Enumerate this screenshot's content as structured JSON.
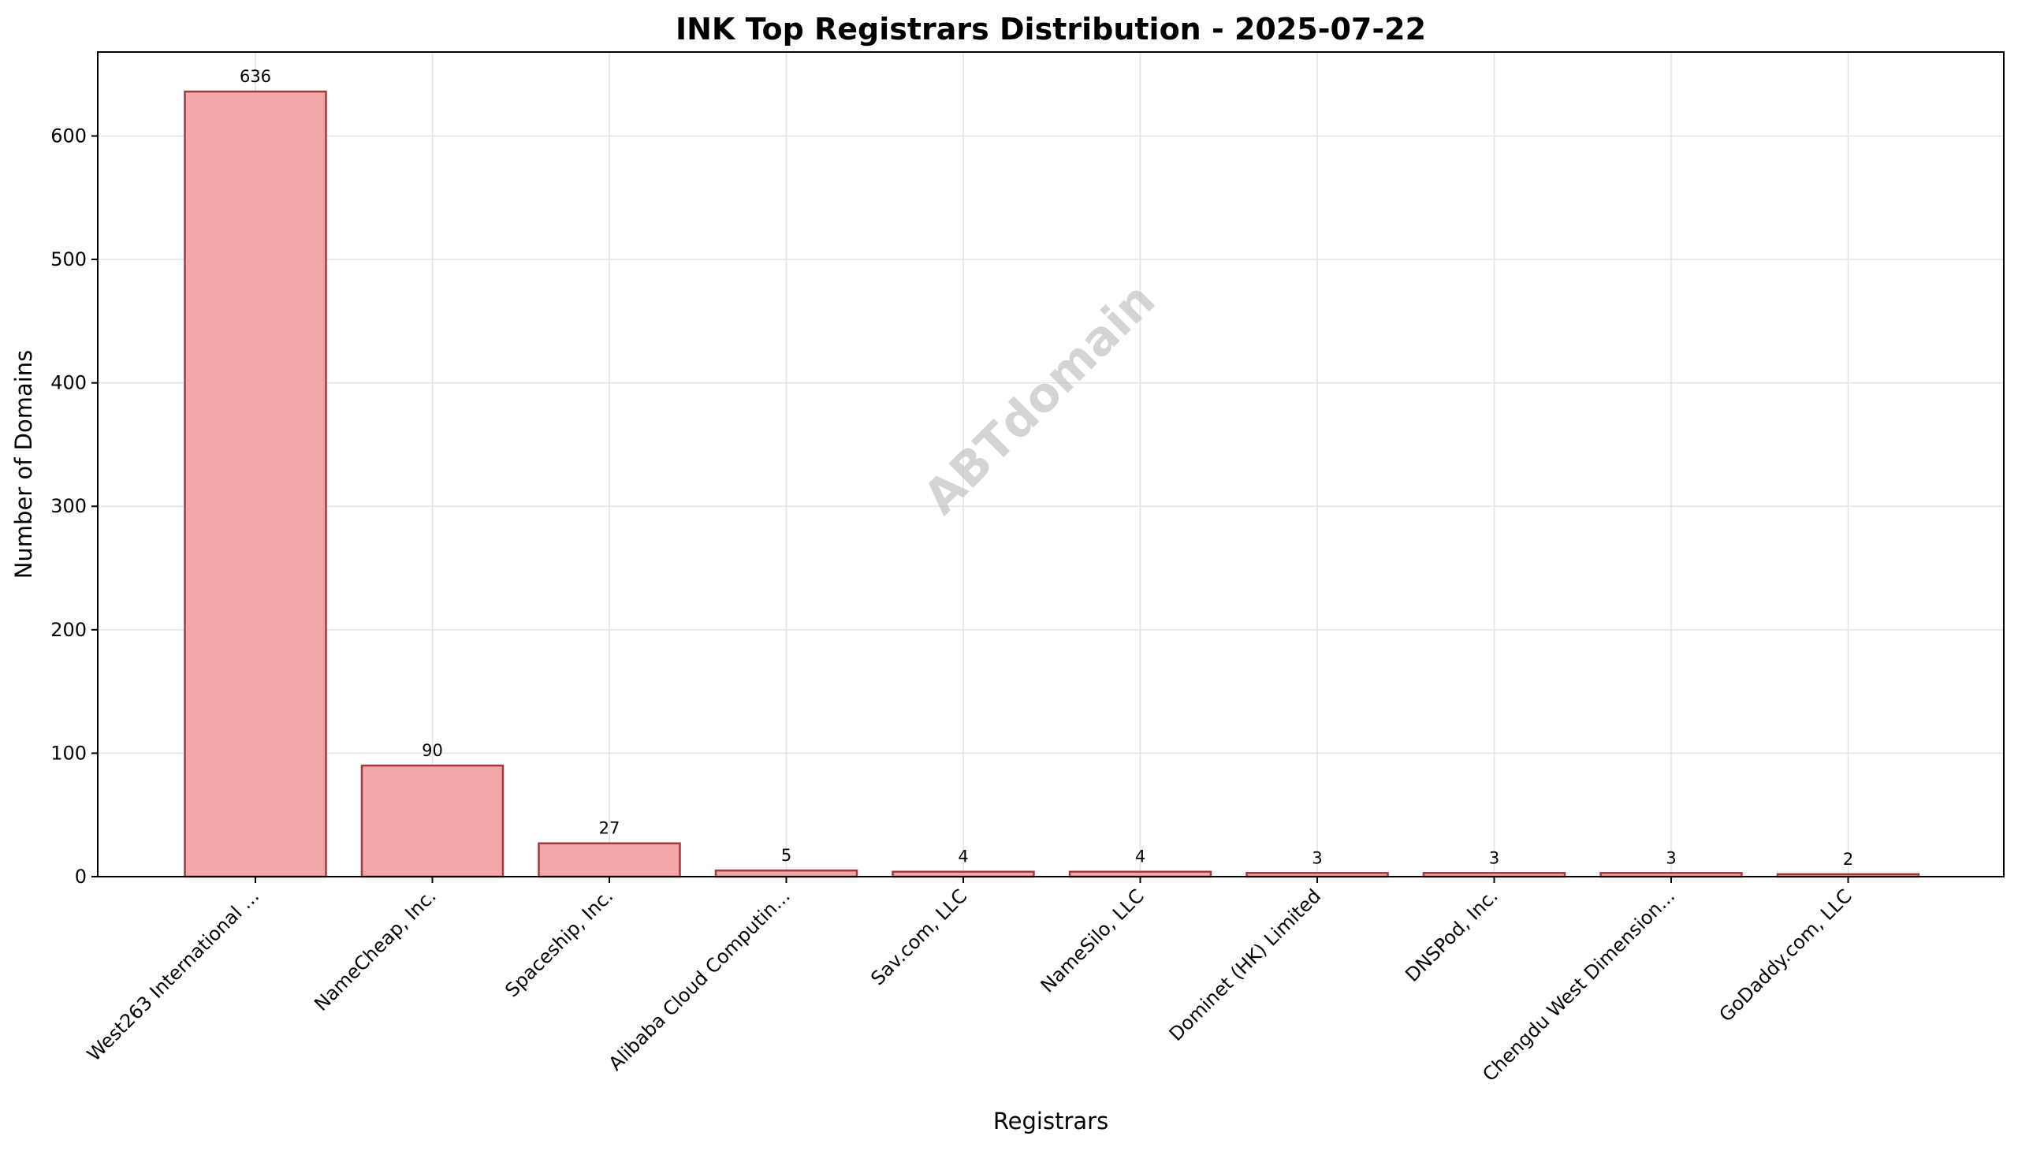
{
  "chart_data": {
    "type": "bar",
    "title": "INK Top Registrars Distribution - 2025-07-22",
    "xlabel": "Registrars",
    "ylabel": "Number of Domains",
    "categories": [
      "West263 International ...",
      "NameCheap, Inc.",
      "Spaceship, Inc.",
      "Alibaba Cloud Computin...",
      "Sav.com, LLC",
      "NameSilo, LLC",
      "Dominet (HK) Limited",
      "DNSPod, Inc.",
      "Chengdu West Dimension...",
      "GoDaddy.com, LLC"
    ],
    "values": [
      636,
      90,
      27,
      5,
      4,
      4,
      3,
      3,
      3,
      2
    ],
    "data_labels": [
      "636",
      "90",
      "27",
      "5",
      "4",
      "4",
      "3",
      "3",
      "3",
      "2"
    ],
    "ylim": [
      0,
      668
    ],
    "yticks": [
      0,
      100,
      200,
      300,
      400,
      500,
      600
    ],
    "grid": true,
    "legend": "none",
    "watermark": "ABTdomain",
    "colors": {
      "bar_fill": "#f4a7a8",
      "bar_edge": "#a03a3c",
      "grid": "#e3e3e3",
      "axis": "#000000"
    }
  }
}
